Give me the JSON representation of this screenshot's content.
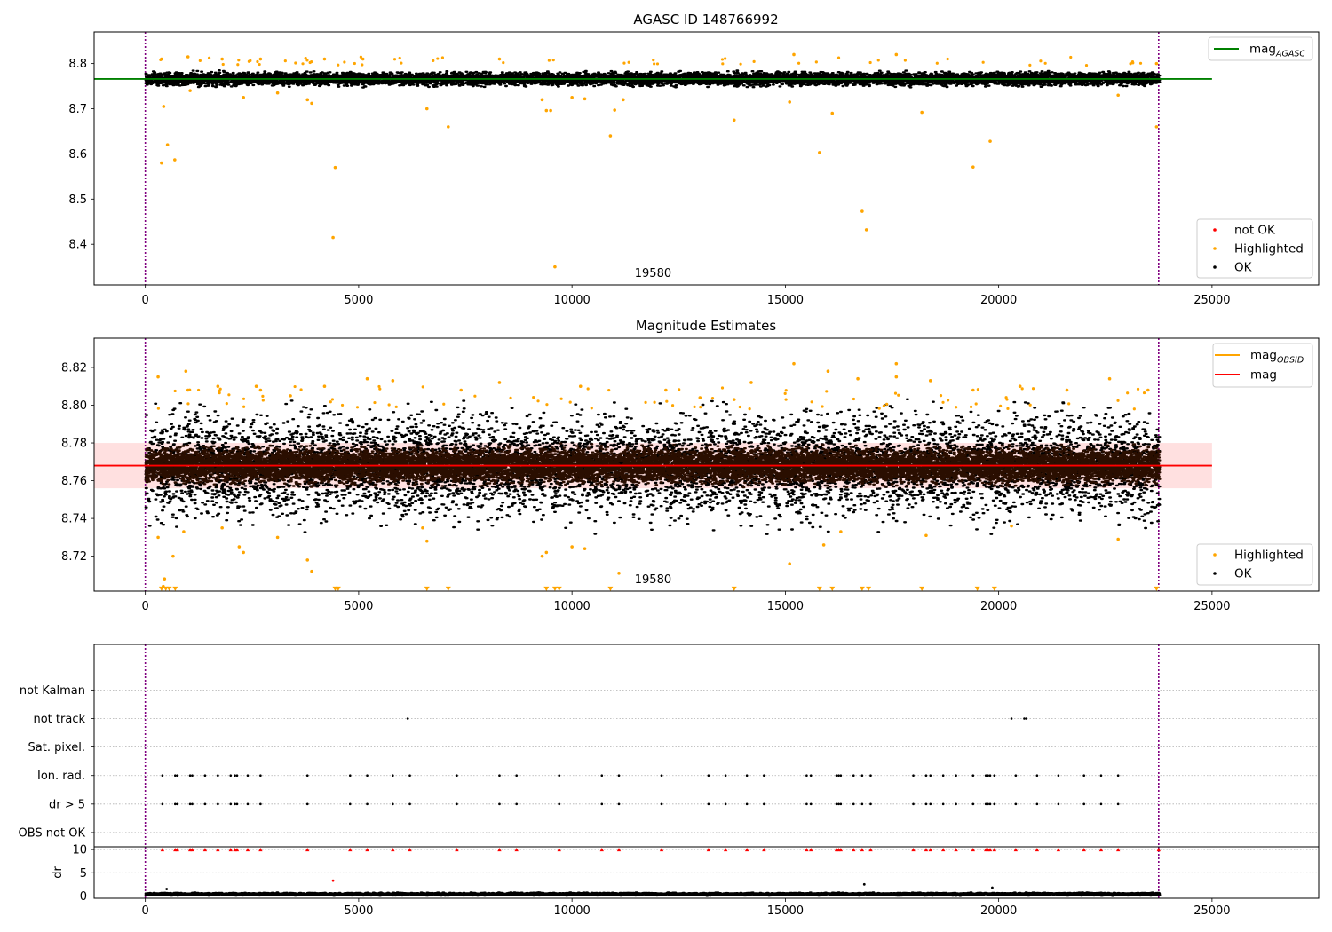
{
  "chart_data": [
    {
      "type": "scatter",
      "title": "AGASC ID 148766992",
      "xlabel": "",
      "ylabel": "",
      "xlim": [
        -1200,
        27500
      ],
      "ylim": [
        8.31,
        8.87
      ],
      "xticks": [
        0,
        5000,
        10000,
        15000,
        20000,
        25000
      ],
      "yticks": [
        8.4,
        8.5,
        8.6,
        8.7,
        8.8
      ],
      "ytick_labels": [
        "8.4",
        "8.5",
        "8.6",
        "8.7",
        "8.8"
      ],
      "vlines": [
        0,
        23750
      ],
      "obsid_label": {
        "text": "19580",
        "x": 11900
      },
      "reference_line": {
        "name": "mag",
        "subscript": "AGASC",
        "value": 8.766,
        "color": "#008000",
        "x_range": [
          -1200,
          25000
        ]
      },
      "legend_top": [
        {
          "name": "mag",
          "subscript": "AGASC",
          "color": "#008000",
          "kind": "line"
        }
      ],
      "legend_bottom": [
        {
          "name": "not OK",
          "color": "#ff0000",
          "kind": "dot"
        },
        {
          "name": "Highlighted",
          "color": "#ffa500",
          "kind": "dot"
        },
        {
          "name": "OK",
          "color": "#000000",
          "kind": "dot"
        }
      ],
      "ok_band": {
        "center": 8.766,
        "half_width": 0.02,
        "x_range": [
          0,
          23750
        ],
        "color": "#000000"
      },
      "series": [
        {
          "name": "Highlighted",
          "color": "#ffa500",
          "points": [
            [
              380,
              8.58
            ],
            [
              430,
              8.705
            ],
            [
              520,
              8.62
            ],
            [
              690,
              8.587
            ],
            [
              380,
              8.81
            ],
            [
              1000,
              8.815
            ],
            [
              1050,
              8.74
            ],
            [
              1800,
              8.81
            ],
            [
              2300,
              8.725
            ],
            [
              2700,
              8.81
            ],
            [
              3100,
              8.735
            ],
            [
              3800,
              8.72
            ],
            [
              3900,
              8.712
            ],
            [
              4200,
              8.81
            ],
            [
              4400,
              8.415
            ],
            [
              4450,
              8.57
            ],
            [
              5100,
              8.81
            ],
            [
              6600,
              8.7
            ],
            [
              7100,
              8.66
            ],
            [
              8300,
              8.81
            ],
            [
              9300,
              8.72
            ],
            [
              9400,
              8.696
            ],
            [
              9500,
              8.696
            ],
            [
              9600,
              8.35
            ],
            [
              10000,
              8.725
            ],
            [
              10300,
              8.722
            ],
            [
              10900,
              8.64
            ],
            [
              11000,
              8.697
            ],
            [
              11200,
              8.72
            ],
            [
              13800,
              8.675
            ],
            [
              15100,
              8.715
            ],
            [
              15200,
              8.82
            ],
            [
              15800,
              8.603
            ],
            [
              16100,
              8.69
            ],
            [
              16800,
              8.473
            ],
            [
              16900,
              8.432
            ],
            [
              17600,
              8.82
            ],
            [
              18200,
              8.692
            ],
            [
              19400,
              8.571
            ],
            [
              19800,
              8.628
            ],
            [
              22800,
              8.73
            ],
            [
              23700,
              8.66
            ],
            [
              23700,
              8.8
            ]
          ]
        },
        {
          "name": "not OK",
          "color": "#ff0000",
          "points": []
        }
      ]
    },
    {
      "type": "scatter",
      "title": "Magnitude Estimates",
      "xlabel": "",
      "ylabel": "",
      "xlim": [
        -1200,
        27500
      ],
      "ylim": [
        8.7015,
        8.8355
      ],
      "xticks": [
        0,
        5000,
        10000,
        15000,
        20000,
        25000
      ],
      "yticks": [
        8.72,
        8.74,
        8.76,
        8.78,
        8.8,
        8.82
      ],
      "ytick_labels": [
        "8.72",
        "8.74",
        "8.76",
        "8.78",
        "8.80",
        "8.82"
      ],
      "vlines": [
        0,
        23750
      ],
      "obsid_label": {
        "text": "19580",
        "x": 11900
      },
      "reference_line": {
        "name": "mag",
        "value": 8.768,
        "color": "#ff0000",
        "band": [
          8.756,
          8.78
        ],
        "band_color": "#ff0000",
        "x_range": [
          -1200,
          25000
        ]
      },
      "legend_top": [
        {
          "name": "mag",
          "subscript": "OBSID",
          "color": "#ffa500",
          "kind": "line"
        },
        {
          "name": "mag",
          "subscript": "",
          "color": "#ff0000",
          "kind": "line"
        }
      ],
      "legend_bottom": [
        {
          "name": "Highlighted",
          "color": "#ffa500",
          "kind": "dot"
        },
        {
          "name": "OK",
          "color": "#000000",
          "kind": "dot"
        }
      ],
      "ok_band": {
        "center": 8.768,
        "half_width": 0.012,
        "x_range": [
          0,
          23750
        ],
        "color": "#2a0e00"
      },
      "series": [
        {
          "name": "Highlighted",
          "color": "#ffa500",
          "points": [
            [
              300,
              8.815
            ],
            [
              300,
              8.73
            ],
            [
              420,
              8.704
            ],
            [
              450,
              8.708
            ],
            [
              650,
              8.72
            ],
            [
              900,
              8.733
            ],
            [
              950,
              8.818
            ],
            [
              1000,
              8.808
            ],
            [
              1700,
              8.81
            ],
            [
              1800,
              8.735
            ],
            [
              2200,
              8.725
            ],
            [
              2300,
              8.722
            ],
            [
              2600,
              8.81
            ],
            [
              2700,
              8.808
            ],
            [
              3100,
              8.73
            ],
            [
              3400,
              8.805
            ],
            [
              3800,
              8.718
            ],
            [
              3900,
              8.712
            ],
            [
              4200,
              8.81
            ],
            [
              5200,
              8.814
            ],
            [
              5800,
              8.813
            ],
            [
              6500,
              8.735
            ],
            [
              6600,
              8.728
            ],
            [
              7400,
              8.808
            ],
            [
              8300,
              8.812
            ],
            [
              9300,
              8.72
            ],
            [
              9400,
              8.722
            ],
            [
              10000,
              8.725
            ],
            [
              10200,
              8.81
            ],
            [
              10300,
              8.724
            ],
            [
              11100,
              8.711
            ],
            [
              12200,
              8.808
            ],
            [
              13000,
              8.804
            ],
            [
              13800,
              8.803
            ],
            [
              14200,
              8.812
            ],
            [
              15100,
              8.716
            ],
            [
              15200,
              8.822
            ],
            [
              15900,
              8.726
            ],
            [
              16000,
              8.818
            ],
            [
              16300,
              8.733
            ],
            [
              16700,
              8.814
            ],
            [
              17600,
              8.822
            ],
            [
              17600,
              8.815
            ],
            [
              18300,
              8.731
            ],
            [
              18400,
              8.813
            ],
            [
              19400,
              8.808
            ],
            [
              20300,
              8.736
            ],
            [
              20500,
              8.81
            ],
            [
              21600,
              8.808
            ],
            [
              22600,
              8.814
            ],
            [
              22800,
              8.729
            ],
            [
              23500,
              8.808
            ]
          ]
        },
        {
          "name": "Highlighted-offscale",
          "color": "#ffa500",
          "points": [
            [
              380,
              8.7025
            ],
            [
              480,
              8.7025
            ],
            [
              560,
              8.7025
            ],
            [
              700,
              8.7025
            ],
            [
              4450,
              8.7025
            ],
            [
              4520,
              8.7025
            ],
            [
              6600,
              8.7025
            ],
            [
              7100,
              8.7025
            ],
            [
              9400,
              8.7025
            ],
            [
              9600,
              8.7025
            ],
            [
              9700,
              8.7025
            ],
            [
              10900,
              8.7025
            ],
            [
              13800,
              8.7025
            ],
            [
              15800,
              8.7025
            ],
            [
              16100,
              8.7025
            ],
            [
              16800,
              8.7025
            ],
            [
              16950,
              8.7025
            ],
            [
              18200,
              8.7025
            ],
            [
              19500,
              8.7025
            ],
            [
              19900,
              8.7025
            ],
            [
              23700,
              8.7025
            ]
          ]
        }
      ]
    },
    {
      "type": "scatter",
      "title": "",
      "xlabel": "",
      "ylabel": "",
      "xlim": [
        -1200,
        27500
      ],
      "ylim": [
        -0.5,
        6.6
      ],
      "flag_categories": [
        "OBS not OK",
        "dr > 5",
        "Ion. rad.",
        "Sat. pixel.",
        "not track",
        "not Kalman"
      ],
      "vlines": [
        0,
        23750
      ],
      "series": [
        {
          "name": "dr > 5",
          "level": 1,
          "color": "#000000",
          "x": [
            400,
            700,
            750,
            1050,
            1100,
            1400,
            1700,
            2000,
            2100,
            2150,
            2400,
            2700,
            3800,
            4800,
            5200,
            5800,
            6200,
            7300,
            8300,
            8700,
            9700,
            10700,
            11100,
            12100,
            13200,
            13600,
            14100,
            14500,
            15500,
            15600,
            16200,
            16250,
            16300,
            16600,
            16800,
            17000,
            18000,
            18300,
            18400,
            18700,
            19000,
            19400,
            19700,
            19750,
            19800,
            19900,
            20400,
            20900,
            21400,
            22000,
            22400,
            22800
          ]
        },
        {
          "name": "Ion. rad.",
          "level": 2,
          "color": "#000000",
          "x": [
            400,
            700,
            750,
            1050,
            1100,
            1400,
            1700,
            2000,
            2100,
            2150,
            2400,
            2700,
            3800,
            4800,
            5200,
            5800,
            6200,
            7300,
            8300,
            8700,
            9700,
            10700,
            11100,
            12100,
            13200,
            13600,
            14100,
            14500,
            15500,
            15600,
            16200,
            16250,
            16300,
            16600,
            16800,
            17000,
            18000,
            18300,
            18400,
            18700,
            19000,
            19400,
            19700,
            19750,
            19800,
            19900,
            20400,
            20900,
            21400,
            22000,
            22400,
            22800
          ]
        },
        {
          "name": "not track",
          "level": 4,
          "color": "#000000",
          "x": [
            6150,
            20300,
            20600,
            20650
          ]
        }
      ]
    },
    {
      "type": "scatter",
      "title": "",
      "xlabel": "",
      "ylabel": "dr",
      "xlim": [
        -1200,
        27500
      ],
      "ylim": [
        -0.5,
        10.6
      ],
      "xticks": [
        0,
        5000,
        10000,
        15000,
        20000,
        25000
      ],
      "yticks": [
        0,
        5,
        10
      ],
      "ytick_labels": [
        "0",
        "5",
        "10"
      ],
      "vlines": [
        0,
        23750
      ],
      "clip_value": 10,
      "ok_band": {
        "center": 0.4,
        "half_width": 0.4,
        "x_range": [
          0,
          23750
        ],
        "color": "#000000"
      },
      "series": [
        {
          "name": "not OK (clipped)",
          "level": 10,
          "color": "#ff0000",
          "x": [
            400,
            700,
            750,
            1050,
            1100,
            1400,
            1700,
            2000,
            2100,
            2150,
            2400,
            2700,
            3800,
            4800,
            5200,
            5800,
            6200,
            7300,
            8300,
            8700,
            9700,
            10700,
            11100,
            12100,
            13200,
            13600,
            14100,
            14500,
            15500,
            15600,
            16200,
            16250,
            16300,
            16600,
            16800,
            17000,
            18000,
            18300,
            18400,
            18700,
            19000,
            19400,
            19700,
            19750,
            19800,
            19900,
            20400,
            20900,
            21400,
            22000,
            22400,
            22800,
            23750
          ]
        },
        {
          "name": "not OK",
          "color": "#ff0000",
          "points": [
            [
              4400,
              3.3
            ]
          ]
        },
        {
          "name": "OK outliers",
          "color": "#000000",
          "points": [
            [
              16850,
              2.5
            ],
            [
              19850,
              1.8
            ],
            [
              500,
              1.5
            ]
          ]
        }
      ]
    }
  ]
}
